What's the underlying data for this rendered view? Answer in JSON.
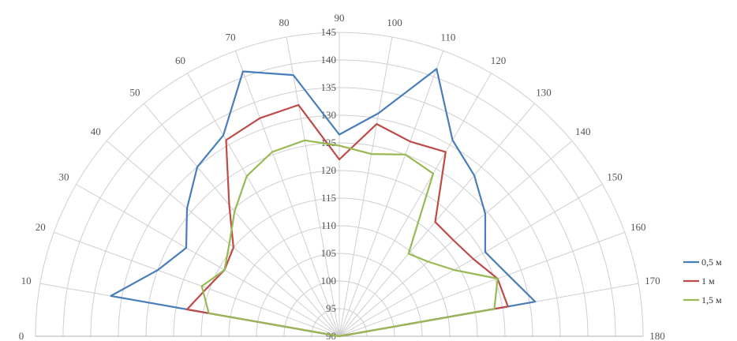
{
  "chart_data": {
    "type": "polar-line",
    "angle_ticks": [
      0,
      10,
      20,
      30,
      40,
      50,
      60,
      70,
      80,
      90,
      100,
      110,
      120,
      130,
      140,
      150,
      160,
      170,
      180
    ],
    "radial_ticks": [
      90,
      95,
      100,
      105,
      110,
      115,
      120,
      125,
      130,
      135,
      140,
      145
    ],
    "rlim": [
      90,
      145
    ],
    "theta_range": [
      0,
      180
    ],
    "grid": true,
    "legend_position": "right",
    "series": [
      {
        "name": "0,5 м",
        "color": "#4a7ebb",
        "points": [
          [
            0,
            90
          ],
          [
            10,
            132
          ],
          [
            20,
            125
          ],
          [
            30,
            122
          ],
          [
            40,
            126
          ],
          [
            50,
            130
          ],
          [
            60,
            132
          ],
          [
            70,
            141
          ],
          [
            80,
            138
          ],
          [
            90,
            126.5
          ],
          [
            100,
            131
          ],
          [
            110,
            141.5
          ],
          [
            120,
            131
          ],
          [
            130,
            128
          ],
          [
            140,
            124.5
          ],
          [
            150,
            120.5
          ],
          [
            160,
            122.5
          ],
          [
            170,
            126
          ],
          [
            180,
            90
          ]
        ]
      },
      {
        "name": "1 м",
        "color": "#be4b48",
        "points": [
          [
            0,
            90
          ],
          [
            10,
            118
          ],
          [
            20,
            115.5
          ],
          [
            30,
            114
          ],
          [
            40,
            115
          ],
          [
            50,
            121
          ],
          [
            60,
            131
          ],
          [
            70,
            132
          ],
          [
            80,
            132.5
          ],
          [
            90,
            122
          ],
          [
            100,
            129
          ],
          [
            110,
            127.5
          ],
          [
            120,
            128.5
          ],
          [
            130,
            117
          ],
          [
            140,
            117
          ],
          [
            150,
            118
          ],
          [
            160,
            120.5
          ],
          [
            170,
            121
          ],
          [
            180,
            90
          ]
        ]
      },
      {
        "name": "1,5 м",
        "color": "#98b954",
        "points": [
          [
            0,
            90
          ],
          [
            10,
            114
          ],
          [
            20,
            116.5
          ],
          [
            30,
            114
          ],
          [
            40,
            116
          ],
          [
            50,
            119.5
          ],
          [
            60,
            123.5
          ],
          [
            70,
            125.5
          ],
          [
            80,
            126
          ],
          [
            90,
            124.5
          ],
          [
            100,
            123.5
          ],
          [
            110,
            125
          ],
          [
            120,
            124
          ],
          [
            130,
            109.5
          ],
          [
            140,
            111
          ],
          [
            150,
            114
          ],
          [
            160,
            120.5
          ],
          [
            170,
            118.5
          ],
          [
            180,
            90
          ]
        ]
      }
    ]
  }
}
